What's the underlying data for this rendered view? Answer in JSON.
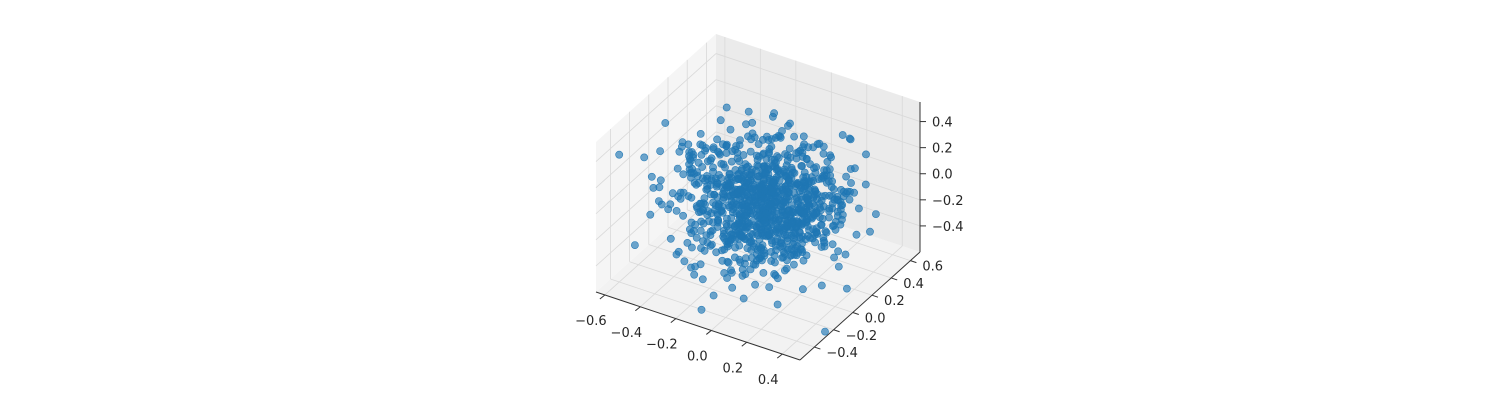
{
  "chart_data": {
    "type": "scatter",
    "projection": "3d",
    "title": "",
    "xlabel": "",
    "ylabel": "",
    "zlabel": "",
    "xlim": [
      -0.65,
      0.5
    ],
    "ylim": [
      -0.55,
      0.7
    ],
    "zlim": [
      -0.6,
      0.55
    ],
    "x_ticks": [
      "−0.6",
      "−0.4",
      "−0.2",
      "0.0",
      "0.2",
      "0.4"
    ],
    "y_ticks": [
      "−0.4",
      "−0.2",
      "0.0",
      "0.2",
      "0.4",
      "0.6"
    ],
    "z_ticks": [
      "−0.4",
      "−0.2",
      "0.0",
      "0.2",
      "0.4"
    ],
    "x_tick_values": [
      -0.6,
      -0.4,
      -0.2,
      0.0,
      0.2,
      0.4
    ],
    "y_tick_values": [
      -0.4,
      -0.2,
      0.0,
      0.2,
      0.4,
      0.6
    ],
    "z_tick_values": [
      -0.4,
      -0.2,
      0.0,
      0.2,
      0.4
    ],
    "grid": true,
    "legend": "none",
    "marker_color": "#1f77b4",
    "pane_color": "#f2f2f2",
    "grid_color": "#d9d9d9",
    "series": [
      {
        "distribution": "normal",
        "n_points": 1000,
        "mean": [
          0.0,
          0.0,
          0.0
        ],
        "std": 0.2,
        "alpha": 0.65
      }
    ]
  }
}
